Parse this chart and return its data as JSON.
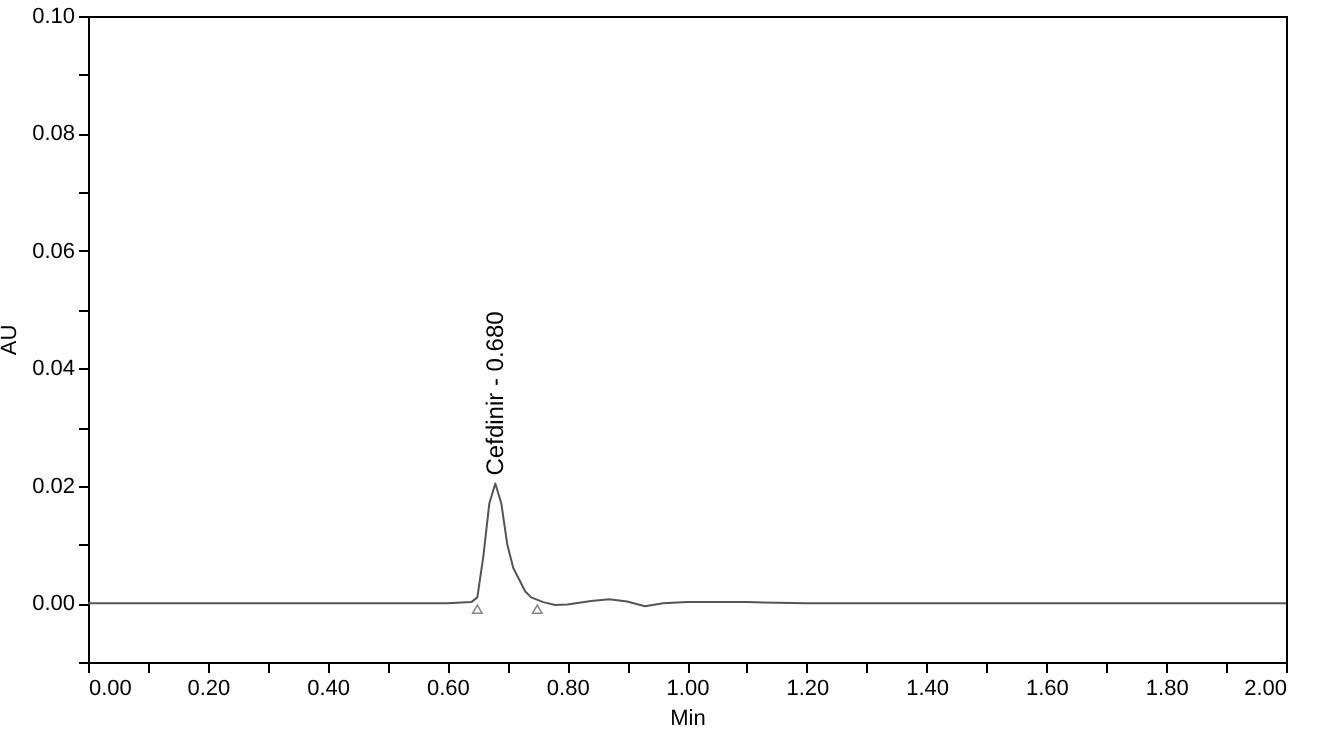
{
  "chart_data": {
    "type": "line",
    "xlabel": "Min",
    "ylabel": "AU",
    "xlim": [
      0,
      2
    ],
    "ylim": [
      -0.01,
      0.1
    ],
    "xticks": [
      {
        "value": 0,
        "label": "0.00"
      },
      {
        "value": 0.2,
        "label": "0.20"
      },
      {
        "value": 0.4,
        "label": "0.40"
      },
      {
        "value": 0.6,
        "label": "0.60"
      },
      {
        "value": 0.8,
        "label": "0.80"
      },
      {
        "value": 1,
        "label": "1.00"
      },
      {
        "value": 1.2,
        "label": "1.20"
      },
      {
        "value": 1.4,
        "label": "1.40"
      },
      {
        "value": 1.6,
        "label": "1.60"
      },
      {
        "value": 1.8,
        "label": "1.80"
      },
      {
        "value": 2,
        "label": "2.00"
      },
      {
        "value": 0.1,
        "label": null
      },
      {
        "value": 0.3,
        "label": null
      },
      {
        "value": 0.5,
        "label": null
      },
      {
        "value": 0.7,
        "label": null
      },
      {
        "value": 0.9,
        "label": null
      },
      {
        "value": 1.1,
        "label": null
      },
      {
        "value": 1.3,
        "label": null
      },
      {
        "value": 1.5,
        "label": null
      },
      {
        "value": 1.7,
        "label": null
      },
      {
        "value": 1.9,
        "label": null
      }
    ],
    "yticks": [
      {
        "value": 0,
        "label": "0.00"
      },
      {
        "value": 0.02,
        "label": "0.02"
      },
      {
        "value": 0.04,
        "label": "0.04"
      },
      {
        "value": 0.06,
        "label": "0.06"
      },
      {
        "value": 0.08,
        "label": "0.08"
      },
      {
        "value": 0.1,
        "label": "0.10"
      },
      {
        "value": -0.01,
        "label": null
      },
      {
        "value": 0.01,
        "label": null
      },
      {
        "value": 0.03,
        "label": null
      },
      {
        "value": 0.05,
        "label": null
      },
      {
        "value": 0.07,
        "label": null
      },
      {
        "value": 0.09,
        "label": null
      }
    ],
    "grid": false,
    "series": [
      {
        "color": "#555555",
        "x": [
          0,
          0.3,
          0.6,
          0.64,
          0.65,
          0.66,
          0.67,
          0.68,
          0.69,
          0.7,
          0.71,
          0.72,
          0.73,
          0.74,
          0.76,
          0.78,
          0.8,
          0.84,
          0.87,
          0.9,
          0.93,
          0.96,
          1.0,
          1.1,
          1.2,
          1.5,
          2.0
        ],
        "values": [
          0,
          0,
          0,
          0.0002,
          0.001,
          0.008,
          0.017,
          0.0204,
          0.017,
          0.01,
          0.006,
          0.004,
          0.002,
          0.001,
          0.0002,
          -0.0003,
          -0.0002,
          0.0004,
          0.0007,
          0.0003,
          -0.0005,
          0,
          0.0002,
          0.0002,
          0,
          0,
          0
        ]
      },
      {
        "type": "scatter",
        "marker": "triangle",
        "color": "#555555",
        "x": [
          0.65,
          0.75
        ],
        "values": [
          -0.001,
          -0.001
        ]
      }
    ],
    "annotations": [
      {
        "text": "Cefdinir - 0.680",
        "x": 0.68,
        "y": 0.0204
      }
    ]
  }
}
